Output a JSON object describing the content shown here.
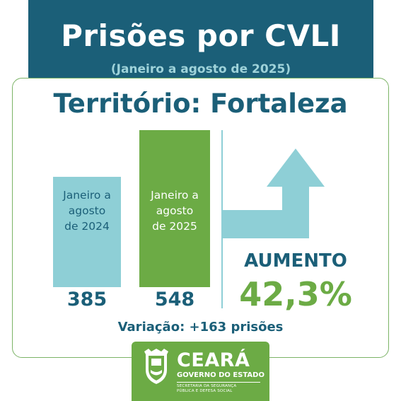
{
  "header": {
    "title": "Prisões por CVLI",
    "subtitle": "(Janeiro a agosto de 2025)"
  },
  "territory": "Território: Fortaleza",
  "chart_data": {
    "type": "bar",
    "categories": [
      "Janeiro a agosto de 2024",
      "Janeiro a agosto de 2025"
    ],
    "category_lines": [
      [
        "Janeiro a",
        "agosto",
        "de 2024"
      ],
      [
        "Janeiro a",
        "agosto",
        "de 2025"
      ]
    ],
    "values": [
      385,
      548
    ],
    "value_labels": [
      "385",
      "548"
    ],
    "colors": [
      "#8ecfd6",
      "#6cab45"
    ],
    "title": "Prisões por CVLI",
    "xlabel": "",
    "ylabel": "",
    "grid": false,
    "legend": "none"
  },
  "trend": {
    "label": "AUMENTO",
    "percent": "42,3%",
    "arrow": "up-arrow-icon",
    "arrow_color": "#8ecfd6"
  },
  "variation": "Variação: +163 prisões",
  "footer": {
    "brand": "CEARÁ",
    "subtitle": "GOVERNO DO ESTADO",
    "secretariat_line1": "Secretaria da Segurança",
    "secretariat_line2": "Pública e Defesa Social",
    "crest": "ceara-coat-of-arms-icon"
  },
  "colors": {
    "primary": "#1b5f78",
    "accent_green": "#6cab45",
    "light_blue": "#8ecfd6",
    "subtitle_blue": "#9fd3da"
  }
}
